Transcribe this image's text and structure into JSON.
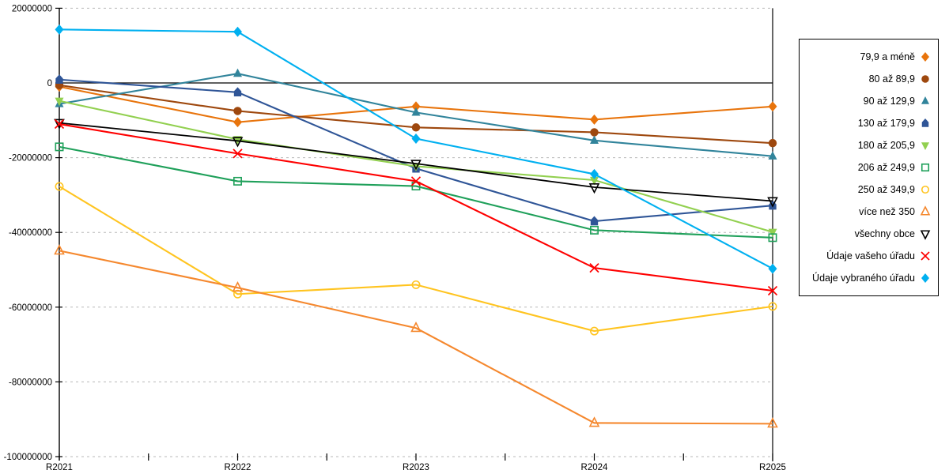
{
  "chart_data": {
    "type": "line",
    "title": "",
    "xlabel": "",
    "ylabel": "",
    "categories": [
      "R2021",
      "R2022",
      "R2023",
      "R2024",
      "R2025"
    ],
    "ylim": [
      -100000000,
      20000000
    ],
    "y_ticks": [
      20000000,
      0,
      -20000000,
      -40000000,
      -60000000,
      -80000000,
      -100000000
    ],
    "y_tick_labels": [
      "20000000",
      "0",
      "-20000000",
      "-40000000",
      "-60000000",
      "-80000000",
      "-100000000"
    ],
    "grid": "horizontal-dashed",
    "gridline_color": "#b8b8b8",
    "zero_line": "solid-black",
    "legend_position": "right-outside",
    "series": [
      {
        "name": "79,9 a méně",
        "marker": "diamond",
        "color": "#E8740C",
        "values": [
          -1000000,
          -10500000,
          -6300000,
          -9800000,
          -6300000
        ]
      },
      {
        "name": "80 až 89,9",
        "marker": "circle",
        "color": "#9E480E",
        "values": [
          -600000,
          -7500000,
          -11900000,
          -13200000,
          -16100000
        ]
      },
      {
        "name": "90 až 129,9",
        "marker": "triangle-up",
        "color": "#31849B",
        "values": [
          -5600000,
          2500000,
          -7900000,
          -15400000,
          -19600000
        ]
      },
      {
        "name": "130 až 179,9",
        "marker": "pentagon",
        "color": "#2F5597",
        "values": [
          900000,
          -2500000,
          -22900000,
          -37000000,
          -32800000
        ]
      },
      {
        "name": "180 až 205,9",
        "marker": "triangle-down",
        "color": "#92D050",
        "values": [
          -4800000,
          -15100000,
          -22300000,
          -26000000,
          -39900000
        ]
      },
      {
        "name": "206 až 249,9",
        "marker": "square-hollow",
        "color": "#1FA05A",
        "values": [
          -17100000,
          -26300000,
          -27600000,
          -39400000,
          -41400000
        ]
      },
      {
        "name": "250 až 349,9",
        "marker": "circle-hollow",
        "color": "#FFC420",
        "values": [
          -27700000,
          -56500000,
          -54000000,
          -66400000,
          -59800000
        ]
      },
      {
        "name": "více než 350",
        "marker": "triangle-up-hollow",
        "color": "#F5882E",
        "values": [
          -44900000,
          -54800000,
          -65600000,
          -91000000,
          -91200000
        ]
      },
      {
        "name": "všechny obce",
        "marker": "triangle-down-hollow",
        "color": "#000000",
        "values": [
          -10700000,
          -15500000,
          -21600000,
          -27900000,
          -31600000
        ]
      },
      {
        "name": "Údaje vašeho úřadu",
        "marker": "x",
        "color": "#FE0000",
        "values": [
          -11000000,
          -18900000,
          -26300000,
          -49500000,
          -55600000
        ]
      },
      {
        "name": "Údaje vybraného úřadu",
        "marker": "diamond",
        "color": "#00B0F0",
        "values": [
          14300000,
          13700000,
          -14900000,
          -24400000,
          -49700000
        ]
      }
    ]
  }
}
